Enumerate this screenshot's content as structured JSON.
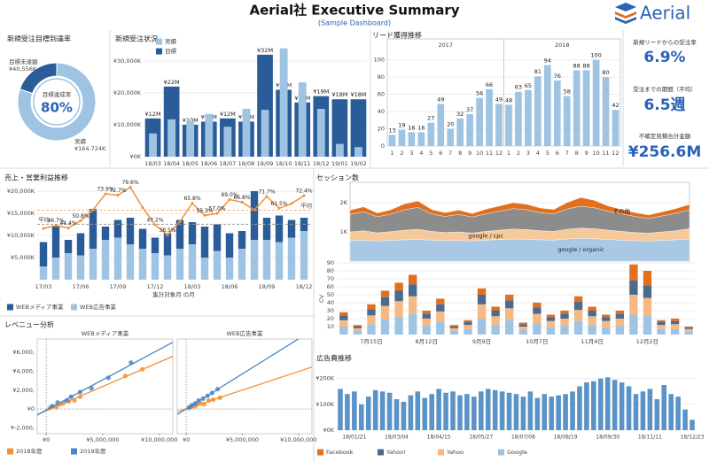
{
  "header": {
    "title": "Aerial社 Executive Summary",
    "subtitle": "(Sample Dashboard)",
    "logo": "Aerial"
  },
  "kpis": [
    {
      "label": "新規リードからの受注率",
      "value": "6.9%"
    },
    {
      "label": "受注までの期間（平均）",
      "value": "6.5週"
    },
    {
      "label": "不確定見積合計金額",
      "value": "¥256.6M"
    }
  ],
  "chart_data": [
    {
      "type": "pie",
      "title": "新規受注目標到達率",
      "categories": [
        "目標未達額",
        "実績"
      ],
      "values": [
        40556,
        164724
      ],
      "value_labels": [
        "¥40,556K",
        "¥164,724K"
      ],
      "colors": [
        "#2b5c9a",
        "#9ec3e3"
      ],
      "center_label": "目標達成率",
      "center_value": "80%"
    },
    {
      "type": "bar",
      "title": "新規受注状況",
      "categories": [
        "18/03",
        "18/04",
        "18/05",
        "18/06",
        "18/07",
        "18/08",
        "18/09",
        "18/10",
        "18/11",
        "18/12",
        "19/01",
        "19/02"
      ],
      "series": [
        {
          "name": "実績",
          "color": "#9ec3e3",
          "values": [
            7300,
            11700,
            11200,
            13400,
            9400,
            15000,
            14700,
            34000,
            23300,
            15000,
            4000,
            3000
          ]
        },
        {
          "name": "目標",
          "color": "#2b5c9a",
          "values": [
            12000,
            22000,
            10000,
            11000,
            12000,
            11000,
            32000,
            21000,
            17000,
            19000,
            18000,
            18000
          ],
          "value_labels": [
            "¥12M",
            "¥22M",
            "¥10M",
            "¥11M",
            "¥12M",
            "¥11M",
            "¥32M",
            "¥21M",
            "¥17M",
            "¥19M",
            "¥18M",
            "¥18M"
          ]
        }
      ],
      "ylim": [
        0,
        35000
      ],
      "yticks": [
        {
          "value": 0,
          "label": "¥0K"
        },
        {
          "value": 10000,
          "label": "¥10,000K"
        },
        {
          "value": 20000,
          "label": "¥20,000K"
        },
        {
          "value": 30000,
          "label": "¥30,000K"
        }
      ],
      "grid": true
    },
    {
      "type": "bar",
      "title": "リード獲得推移",
      "groups": [
        "2017",
        "2018"
      ],
      "categories": [
        "1",
        "2",
        "3",
        "4",
        "5",
        "6",
        "7",
        "8",
        "9",
        "10",
        "11",
        "12",
        "1",
        "2",
        "3",
        "4",
        "5",
        "6",
        "7",
        "8",
        "9",
        "10",
        "11",
        "12"
      ],
      "values": [
        13,
        19,
        16,
        16,
        27,
        49,
        20,
        32,
        37,
        56,
        66,
        49,
        48,
        63,
        65,
        81,
        94,
        76,
        58,
        88,
        88,
        100,
        80,
        42
      ],
      "color": "#9ec3e3",
      "show_values": true,
      "ylim": [
        0,
        110
      ],
      "yticks": [
        0,
        20,
        40,
        60,
        80,
        100
      ],
      "grid": true
    },
    {
      "type": "combo",
      "title": "売上・営業利益推移",
      "x_label": "集計対象月 の月",
      "avg_label": "平均",
      "categories": [
        "17/03",
        null,
        null,
        "17/06",
        null,
        null,
        "17/09",
        null,
        null,
        "17/12",
        null,
        null,
        "18/03",
        null,
        null,
        "18/06",
        null,
        null,
        "18/09",
        null,
        null,
        "18/12"
      ],
      "series": [
        {
          "name": "WEBメディア事業",
          "color": "#2b5c9a",
          "values": [
            5500,
            7000,
            3000,
            5000,
            9000,
            3000,
            4000,
            6000,
            4500,
            3500,
            5000,
            6500,
            5000,
            7000,
            6000,
            5500,
            4000,
            11000,
            5000,
            6000,
            4000,
            3000
          ]
        },
        {
          "name": "WEB広告事業",
          "color": "#9ec3e3",
          "values": [
            3000,
            5000,
            6000,
            5500,
            7000,
            9000,
            9500,
            8000,
            7000,
            6000,
            5500,
            7000,
            8000,
            5000,
            6500,
            5000,
            7000,
            9000,
            9000,
            8500,
            9500,
            11000
          ]
        }
      ],
      "line": {
        "color": "#f0913a",
        "axis": "y2",
        "values": [
          44.0,
          46.7,
          44.4,
          50.8,
          60.0,
          73.9,
          72.7,
          79.6,
          62.0,
          47.2,
          38.5,
          50.0,
          65.8,
          55.3,
          57.0,
          69.0,
          66.8,
          60.0,
          71.7,
          61.5,
          65.5,
          72.4
        ],
        "value_labels": [
          null,
          "46.7%",
          "44.4%",
          "50.8%",
          null,
          "73.9%",
          "72.7%",
          "79.6%",
          null,
          "47.2%",
          "38.5%",
          null,
          "65.8%",
          "55.3%",
          "57.0%",
          "69.0%",
          "66.8%",
          null,
          "71.7%",
          "61.5%",
          null,
          "72.4%"
        ]
      },
      "ylim": [
        0,
        21000
      ],
      "yticks": [
        {
          "value": 5000,
          "label": "¥5,000K"
        },
        {
          "value": 10000,
          "label": "¥10,000K"
        },
        {
          "value": 15000,
          "label": "¥15,000K"
        },
        {
          "value": 20000,
          "label": "¥20,000K"
        }
      ],
      "y2lim": [
        0,
        80
      ],
      "grid": true
    },
    {
      "type": "scatter",
      "title": "レベニュー分析",
      "panels": [
        "WEBメディア事業",
        "WEB広告事業"
      ],
      "series": [
        {
          "name": "2018年度",
          "color": "#f0913a",
          "x": [
            [
              300000,
              600000,
              900000,
              1200000,
              1500000,
              2000000,
              2500000,
              3000000,
              7000000,
              8500000
            ],
            [
              200000,
              400000,
              600000,
              800000,
              1000000,
              1300000,
              1600000,
              2000000,
              2400000,
              3000000
            ]
          ],
          "y": [
            [
              100000,
              300000,
              200000,
              500000,
              600000,
              800000,
              900000,
              1300000,
              3500000,
              4200000
            ],
            [
              100000,
              200000,
              300000,
              300000,
              500000,
              600000,
              500000,
              900000,
              1000000,
              1200000
            ]
          ]
        },
        {
          "name": "2019年度",
          "color": "#4a86c5",
          "x": [
            [
              500000,
              1000000,
              1800000,
              2200000,
              3000000,
              4000000,
              5500000,
              7500000
            ],
            [
              300000,
              500000,
              800000,
              1100000,
              1500000,
              1900000,
              2300000,
              2800000
            ]
          ],
          "y": [
            [
              300000,
              700000,
              900000,
              1300000,
              1800000,
              2200000,
              3300000,
              4900000
            ],
            [
              200000,
              400000,
              600000,
              900000,
              1100000,
              1400000,
              1700000,
              2100000
            ]
          ]
        }
      ],
      "xlim": [
        -800000,
        11200000
      ],
      "xticks": [
        {
          "value": 0,
          "label": "¥0"
        },
        {
          "value": 5000000,
          "label": "¥5,000,000"
        },
        {
          "value": 10000000,
          "label": "¥10,000,000"
        }
      ],
      "ylim": [
        -2600000,
        7400000
      ],
      "yticks": [
        {
          "value": -2000000,
          "label": "¥-2,000,"
        },
        {
          "value": 0,
          "label": "¥0"
        },
        {
          "value": 2000000,
          "label": "¥2,000,"
        },
        {
          "value": 4000000,
          "label": "¥4,000,"
        },
        {
          "value": 6000000,
          "label": "¥6,000,"
        }
      ],
      "trend_lines": true
    },
    {
      "type": "area",
      "title": "セッション数",
      "series": [
        {
          "name": "google / organic",
          "color": "#a9c8e6",
          "values": [
            700,
            720,
            690,
            710,
            730,
            740,
            720,
            700,
            710,
            690,
            720,
            740,
            760,
            750,
            730,
            720,
            760,
            780,
            770,
            740,
            720,
            700,
            690,
            710,
            730,
            760
          ]
        },
        {
          "name": "google / cpc",
          "color": "#f6c99a",
          "values": [
            300,
            320,
            280,
            300,
            330,
            350,
            300,
            280,
            290,
            270,
            300,
            320,
            340,
            330,
            310,
            300,
            330,
            350,
            340,
            320,
            300,
            280,
            270,
            290,
            310,
            350
          ]
        },
        {
          "name": null,
          "color": "#8c8c8c",
          "values": [
            600,
            650,
            550,
            600,
            700,
            750,
            600,
            550,
            600,
            550,
            600,
            650,
            700,
            680,
            620,
            600,
            700,
            750,
            720,
            650,
            600,
            550,
            500,
            550,
            600,
            650
          ]
        },
        {
          "name": "その他",
          "color": "#e0701e",
          "values": [
            150,
            170,
            130,
            150,
            200,
            220,
            150,
            130,
            150,
            120,
            160,
            180,
            200,
            190,
            160,
            150,
            220,
            300,
            250,
            180,
            150,
            130,
            120,
            140,
            160,
            180
          ]
        }
      ],
      "ylim": [
        0,
        2700
      ],
      "yticks": [
        {
          "value": 1000,
          "label": "1K"
        },
        {
          "value": 2000,
          "label": "2K"
        }
      ],
      "grid": true
    },
    {
      "type": "stacked_bar",
      "y_label": "CV",
      "categories": [
        null,
        null,
        "7月15日",
        null,
        null,
        null,
        "8月12日",
        null,
        null,
        null,
        "9月9日",
        null,
        null,
        null,
        "10月7日",
        null,
        null,
        null,
        "11月4日",
        null,
        null,
        null,
        "12月2日",
        null,
        null,
        null
      ],
      "series": [
        {
          "name": "Google",
          "color": "#9ec3e3",
          "values": [
            10,
            5,
            13,
            19,
            22,
            26,
            11,
            16,
            5,
            7,
            20,
            12,
            18,
            6,
            14,
            9,
            11,
            17,
            12,
            9,
            11,
            25,
            24,
            7,
            7,
            4
          ]
        },
        {
          "name": "Yahoo",
          "color": "#f6b983",
          "values": [
            8,
            3,
            11,
            17,
            20,
            22,
            9,
            13,
            3,
            5,
            18,
            11,
            15,
            4,
            12,
            8,
            9,
            14,
            11,
            8,
            9,
            25,
            22,
            5,
            6,
            3
          ]
        },
        {
          "name": "Yahoo!",
          "color": "#4a6a8f",
          "values": [
            6,
            2,
            8,
            11,
            13,
            15,
            6,
            9,
            2,
            4,
            12,
            7,
            10,
            3,
            8,
            5,
            6,
            10,
            7,
            5,
            6,
            18,
            16,
            4,
            4,
            2
          ]
        },
        {
          "name": "Facebook",
          "color": "#e0701e",
          "values": [
            4,
            2,
            6,
            8,
            10,
            12,
            4,
            7,
            2,
            2,
            8,
            5,
            7,
            2,
            6,
            3,
            4,
            7,
            5,
            3,
            4,
            20,
            18,
            2,
            3,
            1
          ]
        }
      ],
      "ylim": [
        0,
        90
      ],
      "yticks": [
        10,
        20,
        30,
        40,
        50,
        60,
        70,
        80,
        90
      ],
      "grid": true
    },
    {
      "type": "bar",
      "title": "広告費推移",
      "categories": [
        null,
        null,
        "18/01/21",
        null,
        null,
        null,
        null,
        null,
        "18/03/04",
        null,
        null,
        null,
        null,
        null,
        "18/04/15",
        null,
        null,
        null,
        null,
        null,
        "18/05/27",
        null,
        null,
        null,
        null,
        null,
        "18/07/08",
        null,
        null,
        null,
        null,
        null,
        "18/08/19",
        null,
        null,
        null,
        null,
        null,
        "18/09/30",
        null,
        null,
        null,
        null,
        null,
        "18/11/11",
        null,
        null,
        null,
        null,
        null,
        "18/12/23"
      ],
      "values": [
        160,
        140,
        150,
        100,
        130,
        155,
        150,
        145,
        120,
        110,
        135,
        150,
        125,
        140,
        160,
        145,
        150,
        135,
        140,
        130,
        150,
        160,
        155,
        150,
        145,
        140,
        130,
        150,
        125,
        140,
        130,
        135,
        140,
        150,
        170,
        185,
        190,
        200,
        205,
        195,
        185,
        170,
        140,
        150,
        160,
        120,
        175,
        140,
        130,
        80,
        40
      ],
      "color": "#5b93c7",
      "ylim": [
        0,
        230
      ],
      "yticks": [
        {
          "value": 0,
          "label": "¥0K"
        },
        {
          "value": 100,
          "label": "¥100K"
        },
        {
          "value": 200,
          "label": "¥200K"
        }
      ],
      "grid": true
    }
  ]
}
